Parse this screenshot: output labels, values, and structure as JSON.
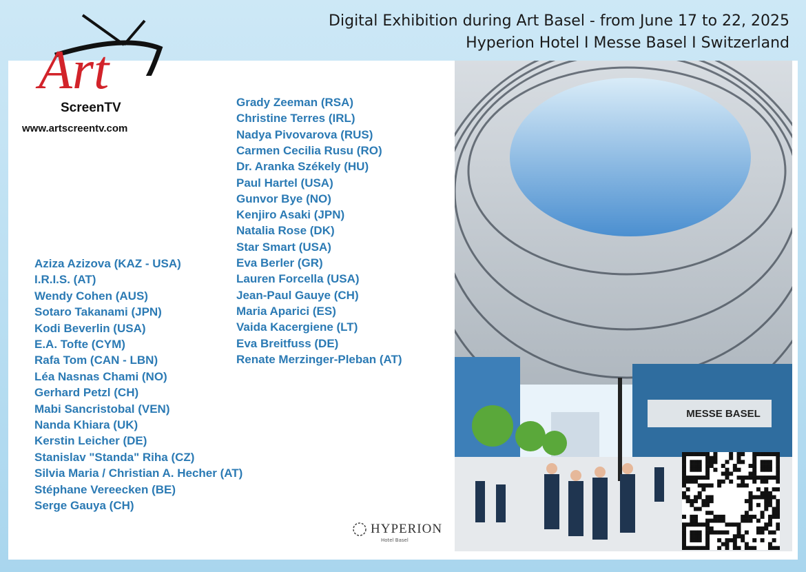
{
  "header": {
    "line1": "Digital Exhibition during Art Basel - from June 17 to 22, 2025",
    "line2": "Hyperion Hotel I Messe Basel I Switzerland"
  },
  "logo": {
    "brand": "Art",
    "subtitle": "ScreenTV",
    "url": "www.artscreentv.com"
  },
  "artists_left": [
    "Aziza Azizova (KAZ - USA)",
    "I.R.I.S. (AT)",
    "Wendy Cohen (AUS)",
    "Sotaro Takanami (JPN)",
    "Kodi Beverlin (USA)",
    "E.A. Tofte (CYM)",
    "Rafa Tom (CAN - LBN)",
    "Léa Nasnas Chami (NO)",
    "Gerhard Petzl (CH)",
    "Mabi Sancristobal (VEN)",
    "Nanda Khiara (UK)",
    "Kerstin Leicher (DE)",
    "Stanislav \"Standa\" Riha (CZ)",
    "Silvia Maria / Christian  A. Hecher (AT)",
    "Stéphane Vereecken (BE)",
    "Serge Gauya (CH)"
  ],
  "artists_right": [
    "Grady Zeeman (RSA)",
    "Christine Terres (IRL)",
    "Nadya Pivovarova (RUS)",
    "Carmen Cecilia Rusu (RO)",
    "Dr. Aranka Székely (HU)",
    "Paul Hartel (USA)",
    "Gunvor Bye (NO)",
    "Kenjiro Asaki (JPN)",
    "Natalia Rose (DK)",
    "Star Smart (USA)",
    "Eva Berler (GR)",
    "Lauren Forcella (USA)",
    "Jean-Paul Gauye (CH)",
    "Maria Aparici (ES)",
    "Vaida Kacergiene (LT)",
    "Eva Breitfuss (DE)",
    "Renate Merzinger-Pleban (AT)"
  ],
  "hotel": {
    "name": "HYPERION",
    "location": "Hotel Basel"
  },
  "illustration": {
    "sign": "MESSE BASEL"
  }
}
